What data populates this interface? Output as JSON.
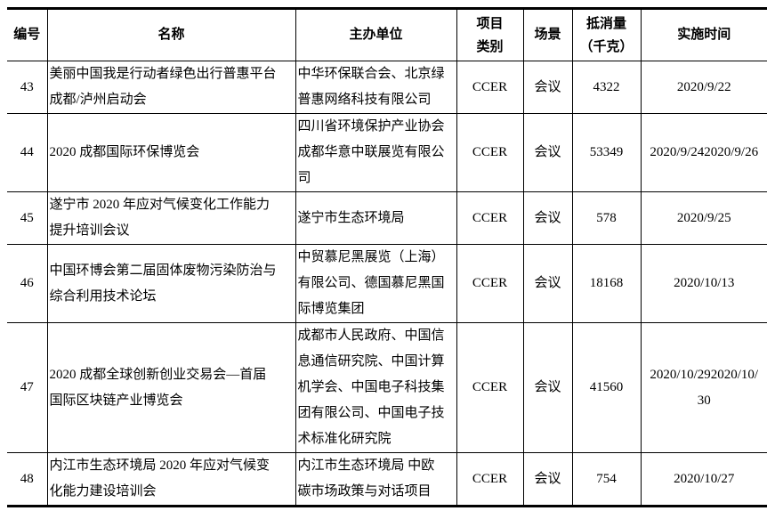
{
  "headers": {
    "id": "编号",
    "name": "名称",
    "organizer": "主办单位",
    "type_lines": [
      "项目",
      "类别"
    ],
    "scene": "场景",
    "offset_lines": [
      "抵消量",
      "（千克）"
    ],
    "date": "实施时间"
  },
  "rows": [
    {
      "id": "43",
      "name": [
        "美丽中国我是行动者绿色出行普惠平台",
        "成都/泸州启动会"
      ],
      "organizer": [
        "中华环保联合会、北京绿",
        "普惠网络科技有限公司"
      ],
      "type": "CCER",
      "scene": "会议",
      "offset": "4322",
      "date": [
        "2020/9/22"
      ]
    },
    {
      "id": "44",
      "name": [
        "2020 成都国际环保博览会"
      ],
      "organizer": [
        "四川省环境保护产业协会",
        "成都华意中联展览有限公",
        "司"
      ],
      "type": "CCER",
      "scene": "会议",
      "offset": "53349",
      "date": [
        "2020/9/242020/9/26"
      ]
    },
    {
      "id": "45",
      "name": [
        "遂宁市 2020 年应对气候变化工作能力",
        "提升培训会议"
      ],
      "organizer": [
        "遂宁市生态环境局"
      ],
      "type": "CCER",
      "scene": "会议",
      "offset": "578",
      "date": [
        "2020/9/25"
      ]
    },
    {
      "id": "46",
      "name": [
        "中国环博会第二届固体废物污染防治与",
        "综合利用技术论坛"
      ],
      "organizer": [
        "中贸慕尼黑展览（上海）",
        "有限公司、德国慕尼黑国",
        "际博览集团"
      ],
      "type": "CCER",
      "scene": "会议",
      "offset": "18168",
      "date": [
        "2020/10/13"
      ]
    },
    {
      "id": "47",
      "name": [
        "2020 成都全球创新创业交易会—首届",
        "国际区块链产业博览会"
      ],
      "organizer": [
        "成都市人民政府、中国信",
        "息通信研究院、中国计算",
        "机学会、中国电子科技集",
        "团有限公司、中国电子技",
        "术标准化研究院"
      ],
      "type": "CCER",
      "scene": "会议",
      "offset": "41560",
      "date": [
        "2020/10/292020/10/",
        "30"
      ]
    },
    {
      "id": "48",
      "name": [
        "内江市生态环境局 2020 年应对气候变",
        "化能力建设培训会"
      ],
      "organizer": [
        "内江市生态环境局  中欧",
        "碳市场政策与对话项目"
      ],
      "type": "CCER",
      "scene": "会议",
      "offset": "754",
      "date": [
        "2020/10/27"
      ]
    }
  ]
}
